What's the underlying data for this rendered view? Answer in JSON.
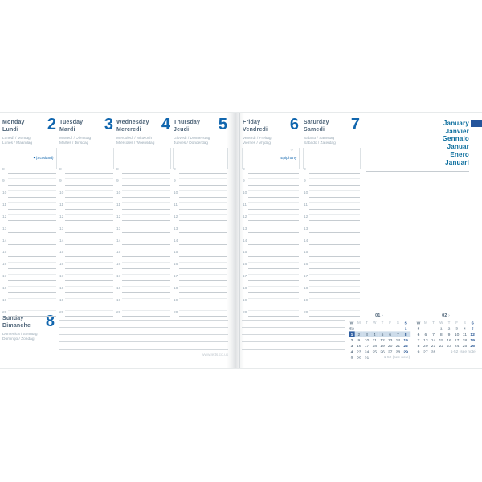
{
  "colors": {
    "accent_blue": "#1166ae",
    "slate_headers": "#4e6478",
    "teal_month_names": "#0a6d9d",
    "tab_navy": "#24549b",
    "week_highlight": "#cddcea",
    "sunday_navy": "#1d4e8f"
  },
  "week_days": [
    {
      "name": "Monday",
      "name_fr": "Lundi",
      "langs1": "Lunedì / Montag",
      "langs2": "Lunes / Maandag",
      "number": "2",
      "marker": "▪",
      "note": "(Scotland)"
    },
    {
      "name": "Tuesday",
      "name_fr": "Mardi",
      "langs1": "Martedì / Dienstag",
      "langs2": "Martes / Dinsdag",
      "number": "3"
    },
    {
      "name": "Wednesday",
      "name_fr": "Mercredi",
      "langs1": "Mercoledì / Mittwoch",
      "langs2": "Miércoles / Woensdag",
      "number": "4"
    },
    {
      "name": "Thursday",
      "name_fr": "Jeudi",
      "langs1": "Giovedì / Donnerstag",
      "langs2": "Jueves / Donderdag",
      "number": "5"
    },
    {
      "name": "Friday",
      "name_fr": "Vendredi",
      "langs1": "Venerdì / Freitag",
      "langs2": "Viernes / Vrijdag",
      "number": "6",
      "symbol": "○",
      "note": "Epiphany"
    },
    {
      "name": "Saturday",
      "name_fr": "Samedi",
      "langs1": "Sabato / Samstag",
      "langs2": "Sábado / Zaterdag",
      "number": "7"
    }
  ],
  "sunday": {
    "name": "Sunday",
    "name_fr": "Dimanche",
    "langs1": "Domenica / Sonntag",
    "langs2": "Domingo / Zondag",
    "number": "8"
  },
  "hours": [
    "8",
    "9",
    "10",
    "11",
    "12",
    "13",
    "14",
    "15",
    "16",
    "17",
    "18",
    "19",
    "20"
  ],
  "months": [
    "January",
    "Janvier",
    "Gennaio",
    "Januar",
    "Enero",
    "Januari"
  ],
  "calendar_header": {
    "week_col": "W",
    "day_letters": [
      "M",
      "T",
      "W",
      "T",
      "F",
      "S",
      "S"
    ]
  },
  "mini_calendars": [
    {
      "label": "01",
      "suffix": "›",
      "note": "1-52 (see note)",
      "weeks": [
        {
          "num": "52",
          "days": [
            "",
            "",
            "",
            "",
            "",
            "",
            "1"
          ]
        },
        {
          "num": "1",
          "days": [
            "2",
            "3",
            "4",
            "5",
            "6",
            "7",
            "8"
          ],
          "current": true
        },
        {
          "num": "2",
          "days": [
            "9",
            "10",
            "11",
            "12",
            "13",
            "14",
            "15"
          ]
        },
        {
          "num": "3",
          "days": [
            "16",
            "17",
            "18",
            "19",
            "20",
            "21",
            "22"
          ]
        },
        {
          "num": "4",
          "days": [
            "23",
            "24",
            "25",
            "26",
            "27",
            "28",
            "29"
          ]
        },
        {
          "num": "5",
          "days": [
            "30",
            "31",
            "",
            "",
            "",
            "",
            ""
          ]
        }
      ]
    },
    {
      "label": "02",
      "suffix": "›",
      "note": "1-52 (see note)",
      "weeks": [
        {
          "num": "5",
          "days": [
            "",
            "",
            "1",
            "2",
            "3",
            "4",
            "5"
          ]
        },
        {
          "num": "6",
          "days": [
            "6",
            "7",
            "8",
            "9",
            "10",
            "11",
            "12"
          ]
        },
        {
          "num": "7",
          "days": [
            "13",
            "14",
            "15",
            "16",
            "17",
            "18",
            "19"
          ]
        },
        {
          "num": "8",
          "days": [
            "20",
            "21",
            "22",
            "23",
            "24",
            "25",
            "26"
          ]
        },
        {
          "num": "9",
          "days": [
            "27",
            "28",
            "",
            "",
            "",
            "",
            ""
          ]
        }
      ]
    }
  ],
  "footer": {
    "url": "www.letts.co.uk"
  }
}
